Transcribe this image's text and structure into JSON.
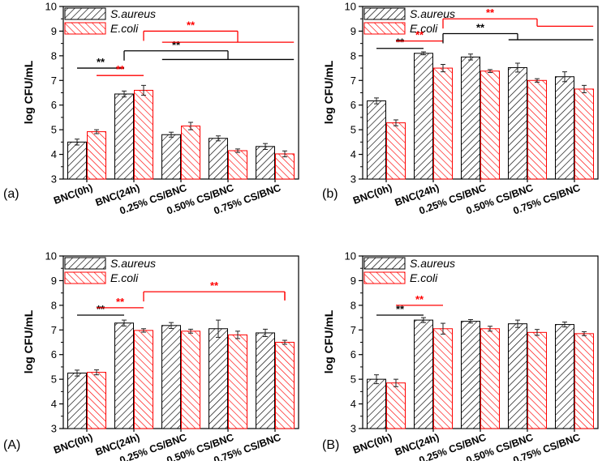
{
  "colors": {
    "saureus": "#000000",
    "ecoli": "#ff0000",
    "axis": "#000000"
  },
  "chart_data": [
    {
      "type": "bar",
      "panel_label": "(a)",
      "ylabel": "log CFU/mL",
      "ylim": [
        3,
        10
      ],
      "yticks": [
        "3",
        "4",
        "5",
        "6",
        "7",
        "8",
        "9",
        "10"
      ],
      "categories": [
        "BNC(0h)",
        "BNC(24h)",
        "0.25% CS/BNC",
        "0.50% CS/BNC",
        "0.75% CS/BNC"
      ],
      "series": [
        {
          "name": "S.aureus",
          "values": [
            4.5,
            6.45,
            4.8,
            4.65,
            4.32
          ],
          "errors": [
            0.12,
            0.12,
            0.1,
            0.1,
            0.12
          ]
        },
        {
          "name": "E.coli",
          "values": [
            4.92,
            6.6,
            5.15,
            4.15,
            4.02
          ],
          "errors": [
            0.08,
            0.2,
            0.15,
            0.07,
            0.12
          ]
        }
      ],
      "brackets": [
        {
          "label": "**",
          "color": "black",
          "level": 7.5,
          "from": [
            "BNC(0h)",
            "S.aureus"
          ],
          "to": [
            "BNC(24h)",
            "S.aureus"
          ]
        },
        {
          "label": "**",
          "color": "red",
          "level": 7.2,
          "from": [
            "BNC(0h)",
            "E.coli"
          ],
          "to": [
            "BNC(24h)",
            "E.coli"
          ]
        },
        {
          "label": "**",
          "color": "black",
          "level": 8.2,
          "from": [
            "BNC(24h)",
            "S.aureus"
          ],
          "to": [
            "0.50% CS/BNC",
            "center"
          ],
          "drop": 7.85,
          "span": [
            "0.25% CS/BNC",
            "0.75% CS/BNC"
          ]
        },
        {
          "label": "**",
          "color": "red",
          "level": 9.0,
          "from": [
            "BNC(24h)",
            "E.coli"
          ],
          "to": [
            "0.50% CS/BNC",
            "E.coli"
          ],
          "drop": 8.55,
          "span": [
            "0.25% CS/BNC",
            "0.75% CS/BNC"
          ]
        }
      ]
    },
    {
      "type": "bar",
      "panel_label": "(b)",
      "ylabel": "log CFU/mL",
      "ylim": [
        3,
        10
      ],
      "yticks": [
        "3",
        "4",
        "5",
        "6",
        "7",
        "8",
        "9",
        "10"
      ],
      "categories": [
        "BNC(0h)",
        "BNC(24h)",
        "0.25% CS/BNC",
        "0.50% CS/BNC",
        "0.75% CS/BNC"
      ],
      "series": [
        {
          "name": "S.aureus",
          "values": [
            6.17,
            8.1,
            7.95,
            7.52,
            7.15
          ],
          "errors": [
            0.12,
            0.06,
            0.12,
            0.18,
            0.2
          ]
        },
        {
          "name": "E.coli",
          "values": [
            5.28,
            7.5,
            7.38,
            7.0,
            6.65
          ],
          "errors": [
            0.12,
            0.15,
            0.06,
            0.07,
            0.15
          ]
        }
      ],
      "brackets": [
        {
          "label": "**",
          "color": "black",
          "level": 8.3,
          "from": [
            "BNC(0h)",
            "S.aureus"
          ],
          "to": [
            "BNC(24h)",
            "S.aureus"
          ]
        },
        {
          "label": "**",
          "color": "red",
          "level": 8.6,
          "from": [
            "BNC(0h)",
            "E.coli"
          ],
          "to": [
            "BNC(24h)",
            "E.coli"
          ]
        },
        {
          "label": "**",
          "color": "black",
          "level": 8.9,
          "from": [
            "BNC(24h)",
            "E.coli"
          ],
          "to": [
            "0.50% CS/BNC",
            "S.aureus"
          ],
          "drop": 8.65,
          "span": [
            "0.50% CS/BNC",
            "0.75% CS/BNC"
          ]
        },
        {
          "label": "**",
          "color": "red",
          "level": 9.5,
          "from": [
            "BNC(24h)",
            "E.coli"
          ],
          "to": [
            "0.50% CS/BNC",
            "E.coli"
          ],
          "drop": 9.2,
          "span": [
            "0.75% CS/BNC",
            "0.75% CS/BNC"
          ]
        }
      ]
    },
    {
      "type": "bar",
      "panel_label": "(A)",
      "ylabel": "log CFU/mL",
      "ylim": [
        3,
        10
      ],
      "yticks": [
        "3",
        "4",
        "5",
        "6",
        "7",
        "8",
        "9",
        "10"
      ],
      "categories": [
        "BNC(0h)",
        "BNC(24h)",
        "0.25% CS/BNC",
        "0.50% CS/BNC",
        "0.75% CS/BNC"
      ],
      "series": [
        {
          "name": "S.aureus",
          "values": [
            5.25,
            7.28,
            7.18,
            7.05,
            6.88
          ],
          "errors": [
            0.12,
            0.12,
            0.12,
            0.35,
            0.15
          ]
        },
        {
          "name": "E.coli",
          "values": [
            5.28,
            6.98,
            6.95,
            6.8,
            6.5
          ],
          "errors": [
            0.1,
            0.07,
            0.08,
            0.15,
            0.08
          ]
        }
      ],
      "brackets": [
        {
          "label": "**",
          "color": "black",
          "level": 7.6,
          "from": [
            "BNC(0h)",
            "S.aureus"
          ],
          "to": [
            "BNC(24h)",
            "S.aureus"
          ]
        },
        {
          "label": "**",
          "color": "red",
          "level": 7.9,
          "from": [
            "BNC(0h)",
            "E.coli"
          ],
          "to": [
            "BNC(24h)",
            "E.coli"
          ]
        },
        {
          "label": "**",
          "color": "red",
          "level": 8.55,
          "from": [
            "BNC(24h)",
            "E.coli"
          ],
          "to": [
            "0.75% CS/BNC",
            "E.coli"
          ],
          "drop": 8.2
        }
      ]
    },
    {
      "type": "bar",
      "panel_label": "(B)",
      "ylabel": "log CFU/mL",
      "ylim": [
        3,
        10
      ],
      "yticks": [
        "3",
        "4",
        "5",
        "6",
        "7",
        "8",
        "9",
        "10"
      ],
      "categories": [
        "BNC(0h)",
        "BNC(24h)",
        "0.25% CS/BNC",
        "0.50% CS/BNC",
        "0.75% CS/BNC"
      ],
      "series": [
        {
          "name": "S.aureus",
          "values": [
            5.0,
            7.4,
            7.35,
            7.25,
            7.22
          ],
          "errors": [
            0.18,
            0.1,
            0.07,
            0.15,
            0.1
          ]
        },
        {
          "name": "E.coli",
          "values": [
            4.85,
            7.05,
            7.05,
            6.9,
            6.85
          ],
          "errors": [
            0.15,
            0.22,
            0.1,
            0.12,
            0.08
          ]
        }
      ],
      "brackets": [
        {
          "label": "**",
          "color": "black",
          "level": 7.6,
          "from": [
            "BNC(0h)",
            "S.aureus"
          ],
          "to": [
            "BNC(24h)",
            "S.aureus"
          ]
        },
        {
          "label": "**",
          "color": "red",
          "level": 8.0,
          "from": [
            "BNC(0h)",
            "E.coli"
          ],
          "to": [
            "BNC(24h)",
            "E.coli"
          ]
        }
      ]
    }
  ]
}
